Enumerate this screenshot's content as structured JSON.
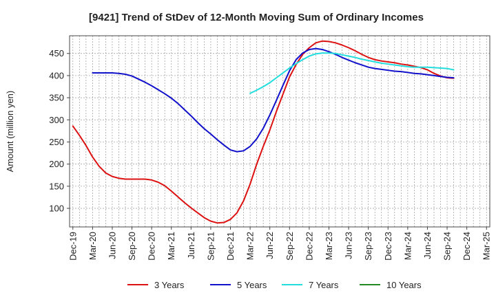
{
  "chart_data": {
    "type": "line",
    "title": "[9421]  Trend of StDev of 12-Month Moving Sum of Ordinary Incomes",
    "xlabel": "",
    "ylabel": "Amount (million yen)",
    "ylim": [
      58,
      490
    ],
    "yticks": [
      100,
      150,
      200,
      250,
      300,
      350,
      400,
      450
    ],
    "grid": true,
    "legend_position": "bottom",
    "x_start": "Dec-19",
    "x_month_count": 64,
    "xticks": [
      {
        "label": "Dec-19",
        "index": 0
      },
      {
        "label": "Mar-20",
        "index": 3
      },
      {
        "label": "Jun-20",
        "index": 6
      },
      {
        "label": "Sep-20",
        "index": 9
      },
      {
        "label": "Dec-20",
        "index": 12
      },
      {
        "label": "Mar-21",
        "index": 15
      },
      {
        "label": "Jun-21",
        "index": 18
      },
      {
        "label": "Sep-21",
        "index": 21
      },
      {
        "label": "Dec-21",
        "index": 24
      },
      {
        "label": "Mar-22",
        "index": 27
      },
      {
        "label": "Jun-22",
        "index": 30
      },
      {
        "label": "Sep-22",
        "index": 33
      },
      {
        "label": "Dec-22",
        "index": 36
      },
      {
        "label": "Mar-23",
        "index": 39
      },
      {
        "label": "Jun-23",
        "index": 42
      },
      {
        "label": "Sep-23",
        "index": 45
      },
      {
        "label": "Dec-23",
        "index": 48
      },
      {
        "label": "Mar-24",
        "index": 51
      },
      {
        "label": "Jun-24",
        "index": 54
      },
      {
        "label": "Sep-24",
        "index": 57
      },
      {
        "label": "Dec-24",
        "index": 60
      },
      {
        "label": "Mar-25",
        "index": 63
      }
    ],
    "series": [
      {
        "name": "3 Years",
        "color": "#dd1111",
        "start_index": 0,
        "values": [
          286,
          265,
          242,
          216,
          195,
          180,
          172,
          168,
          166,
          166,
          166,
          166,
          164,
          159,
          151,
          139,
          126,
          113,
          101,
          90,
          79,
          71,
          67,
          68,
          75,
          90,
          117,
          155,
          200,
          240,
          277,
          319,
          358,
          397,
          425,
          448,
          463,
          474,
          478,
          477,
          474,
          469,
          463,
          456,
          448,
          441,
          436,
          433,
          431,
          429,
          426,
          424,
          421,
          418,
          413,
          405,
          399,
          395,
          394
        ]
      },
      {
        "name": "5 Years",
        "color": "#1111cc",
        "start_index": 3,
        "values": [
          406,
          406,
          406,
          406,
          405,
          403,
          399,
          392,
          385,
          377,
          368,
          359,
          349,
          337,
          323,
          309,
          294,
          280,
          268,
          255,
          243,
          232,
          228,
          230,
          240,
          257,
          281,
          311,
          344,
          378,
          411,
          436,
          451,
          459,
          461,
          459,
          454,
          448,
          441,
          435,
          429,
          424,
          419,
          416,
          414,
          412,
          410,
          409,
          407,
          405,
          404,
          402,
          400,
          398,
          396,
          395
        ]
      },
      {
        "name": "7 Years",
        "color": "#22dddd",
        "start_index": 27,
        "values": [
          360,
          367,
          375,
          384,
          395,
          406,
          417,
          427,
          436,
          444,
          449,
          451,
          451,
          450,
          447,
          444,
          441,
          437,
          434,
          431,
          428,
          426,
          424,
          422,
          420,
          419,
          419,
          419,
          418,
          417,
          416,
          413
        ]
      },
      {
        "name": "10 Years",
        "color": "#228822",
        "start_index": 0,
        "values": []
      }
    ]
  }
}
